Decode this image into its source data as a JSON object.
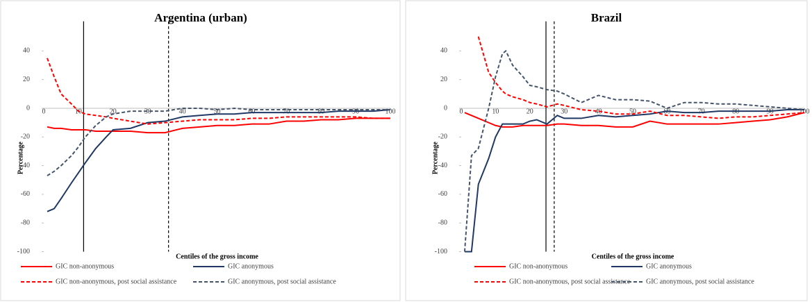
{
  "chart_data": [
    {
      "type": "line",
      "title": "Argentina (urban)",
      "x_label": "Centiles of the gross income",
      "y_label": "Percentage",
      "x": [
        1,
        3,
        5,
        8,
        10,
        12,
        15,
        18,
        20,
        25,
        30,
        35,
        40,
        45,
        50,
        55,
        60,
        65,
        70,
        75,
        80,
        85,
        90,
        95,
        100
      ],
      "xlim": [
        0,
        100
      ],
      "xticks": [
        0,
        10,
        20,
        30,
        40,
        50,
        60,
        70,
        80,
        90,
        100
      ],
      "ylim": [
        -100,
        50
      ],
      "yticks": [
        -100,
        -80,
        -60,
        -40,
        -20,
        0,
        20,
        40
      ],
      "vlines": [
        {
          "x": 11.5,
          "dashed": false
        },
        {
          "x": 36,
          "dashed": true
        }
      ],
      "series": [
        {
          "name": "GIC non-anonymous",
          "color": "#ff0000",
          "dashed": false,
          "values": [
            -13,
            -14,
            -14,
            -15,
            -15,
            -15,
            -16,
            -16,
            -16,
            -16,
            -17,
            -17,
            -14,
            -13,
            -12,
            -12,
            -11,
            -11,
            -9,
            -9,
            -8,
            -8,
            -7,
            -7,
            -7
          ]
        },
        {
          "name": "GIC anonymous",
          "color": "#1f3864",
          "dashed": false,
          "values": [
            -72,
            -70,
            -63,
            -52,
            -45,
            -38,
            -28,
            -20,
            -15,
            -14,
            -10,
            -9,
            -6,
            -5,
            -4,
            -4,
            -3,
            -3,
            -3,
            -3,
            -3,
            -2,
            -2,
            -2,
            -1
          ]
        },
        {
          "name": "GIC non-anonymous, post social assistance",
          "color": "#ff0000",
          "dashed": true,
          "values": [
            35,
            22,
            10,
            3,
            -2,
            -4,
            -5,
            -6,
            -7,
            -9,
            -11,
            -10,
            -9,
            -8,
            -8,
            -8,
            -7,
            -7,
            -6,
            -6,
            -6,
            -6,
            -6,
            -7,
            -7
          ]
        },
        {
          "name": "GIC anonymous, post social assistance",
          "color": "#44546a",
          "dashed": true,
          "values": [
            -47,
            -44,
            -40,
            -33,
            -27,
            -20,
            -12,
            -6,
            -4,
            -2,
            -2,
            -2,
            0,
            0,
            -1,
            0,
            -1,
            -1,
            -1,
            -1,
            -1,
            -1,
            -1,
            -1,
            -1
          ]
        }
      ]
    },
    {
      "type": "line",
      "title": "Brazil",
      "x_label": "Centiles of the gross income",
      "y_label": "Percentage",
      "x": [
        1,
        3,
        5,
        8,
        10,
        12,
        13,
        15,
        18,
        20,
        22,
        25,
        28,
        30,
        35,
        40,
        45,
        50,
        55,
        60,
        65,
        70,
        75,
        80,
        85,
        90,
        95,
        100
      ],
      "xlim": [
        0,
        100
      ],
      "xticks": [
        0,
        10,
        20,
        30,
        40,
        50,
        60,
        70,
        80,
        90,
        100
      ],
      "ylim": [
        -100,
        50
      ],
      "yticks": [
        -100,
        -80,
        -60,
        -40,
        -20,
        0,
        20,
        40
      ],
      "vlines": [
        {
          "x": 24.7,
          "dashed": false
        },
        {
          "x": 27.1,
          "dashed": true
        }
      ],
      "series": [
        {
          "name": "GIC non-anonymous",
          "color": "#ff0000",
          "dashed": false,
          "values": [
            -3,
            -5,
            -7,
            -10,
            -12,
            -13,
            -13,
            -13,
            -12,
            -12,
            -12,
            -12,
            -11,
            -11,
            -12,
            -12,
            -13,
            -13,
            -9,
            -11,
            -11,
            -11,
            -11,
            -10,
            -9,
            -8,
            -6,
            -3
          ]
        },
        {
          "name": "GIC anonymous",
          "color": "#1f3864",
          "dashed": false,
          "values": [
            -100,
            -100,
            -53,
            -35,
            -20,
            -11,
            -11,
            -11,
            -11,
            -9,
            -8,
            -11,
            -5,
            -7,
            -7,
            -5,
            -6,
            -5,
            -4,
            -2,
            -3,
            -3,
            -2,
            -2,
            -2,
            -2,
            -1,
            -1
          ]
        },
        {
          "name": "GIC non-anonymous, post social assistance",
          "color": "#ff0000",
          "dashed": true,
          "values": [
            null,
            null,
            50,
            25,
            18,
            12,
            10,
            8,
            6,
            4,
            3,
            1,
            3,
            2,
            -1,
            -2,
            -4,
            -4,
            -2,
            -5,
            -5,
            -6,
            -7,
            -6,
            -6,
            -5,
            -4,
            -3
          ]
        },
        {
          "name": "GIC anonymous, post social assistance",
          "color": "#44546a",
          "dashed": true,
          "values": [
            -100,
            -33,
            -28,
            0,
            22,
            38,
            40,
            30,
            22,
            16,
            15,
            13,
            12,
            10,
            4,
            9,
            6,
            6,
            5,
            0,
            4,
            4,
            3,
            3,
            2,
            1,
            0,
            -1
          ]
        }
      ]
    }
  ]
}
